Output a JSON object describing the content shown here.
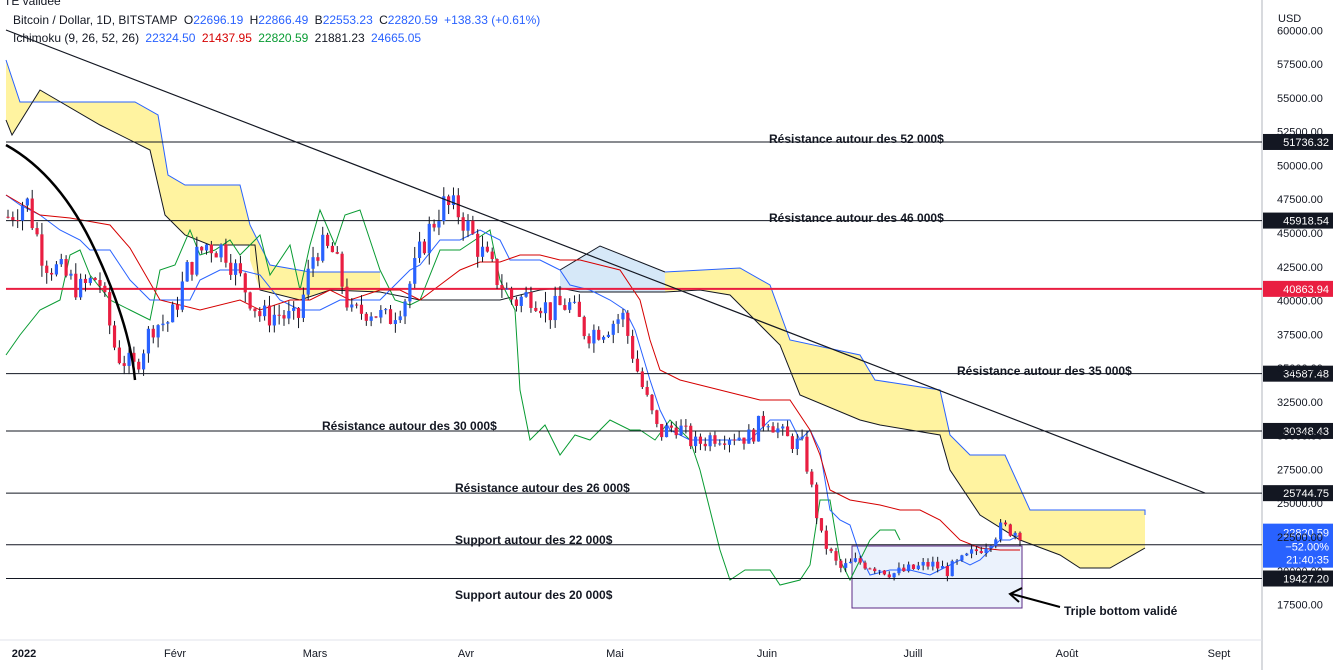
{
  "header": {
    "cut_text": "TE validée",
    "symbol": "Bitcoin / Dollar, 1D, BITSTAMP",
    "open_label": "O",
    "open": "22696.19",
    "high_label": "H",
    "high": "22866.49",
    "low_label": "B",
    "low": "22553.23",
    "close_label": "C",
    "close": "22820.59",
    "change": "+138.33 (+0.61%)",
    "indicator": "Ichimoku (9, 26, 52, 26)",
    "ind_values": [
      "22324.50",
      "21437.95",
      "22820.59",
      "21881.23",
      "24665.05"
    ],
    "ind_colors": [
      "#2962ff",
      "#d50000",
      "#089b32",
      "#131722",
      "#2962ff"
    ]
  },
  "chart_data": {
    "type": "candlestick",
    "currency": "USD",
    "ylim": [
      16800,
      61800
    ],
    "y_ticks": [
      "60000.00",
      "57500.00",
      "55000.00",
      "52500.00",
      "50000.00",
      "47500.00",
      "45000.00",
      "42500.00",
      "40000.00",
      "37500.00",
      "35000.00",
      "32500.00",
      "30000.00",
      "27500.00",
      "25000.00",
      "22500.00",
      "20000.00",
      "17500.00"
    ],
    "x_labels": [
      "2022",
      "Févr",
      "Mars",
      "Avr",
      "Mai",
      "Juin",
      "Juill",
      "Août",
      "Sept"
    ],
    "horizontal_levels": [
      {
        "value": 51736.32,
        "label": "51736.32",
        "color": "#131722"
      },
      {
        "value": 45918.54,
        "label": "45918.54",
        "color": "#131722"
      },
      {
        "value": 40863.94,
        "label": "40863.94",
        "color": "#e91e41"
      },
      {
        "value": 34587.48,
        "label": "34587.48",
        "color": "#131722"
      },
      {
        "value": 30348.43,
        "label": "30348.43",
        "color": "#131722"
      },
      {
        "value": 25744.75,
        "label": "25744.75",
        "color": "#131722"
      },
      {
        "value": 21926.5,
        "label": "21926.50",
        "color": "#131722"
      },
      {
        "value": 19427.2,
        "label": "19427.20",
        "color": "#131722"
      }
    ],
    "last_price": {
      "value": "22820.59",
      "change": "−52.00%",
      "countdown": "21:40:35",
      "color": "#2962ff"
    },
    "annotations": [
      "Résistance autour des 52 000$",
      "Résistance autour des 46 000$",
      "Résistance autour des 35 000$",
      "Résistance autour des 30 000$",
      "Résistance autour des 26 000$",
      "Support autour des 22 000$",
      "Support autour des 20 000$",
      "Triple bottom validé"
    ],
    "candles_close_trend": [
      46200,
      47500,
      43000,
      42000,
      40800,
      41800,
      36000,
      35000,
      38200,
      38500,
      42500,
      44200,
      43800,
      41200,
      38800,
      39000,
      38400,
      44000,
      43500,
      38900,
      39400,
      38500,
      40300,
      44300,
      47100,
      46500,
      44000,
      41800,
      39900,
      40500,
      39200,
      39800,
      37600,
      38000,
      38900,
      34000,
      30100,
      30800,
      29300,
      30000,
      30100,
      29900,
      31400,
      29800,
      29200,
      22500,
      20100,
      20700,
      20300,
      19800,
      20100,
      20500,
      20000,
      20900,
      21900,
      23200,
      22820.59
    ],
    "cloud": {
      "fill_bull": "#fff3a0",
      "fill_bear": "#d6e8f8"
    }
  }
}
